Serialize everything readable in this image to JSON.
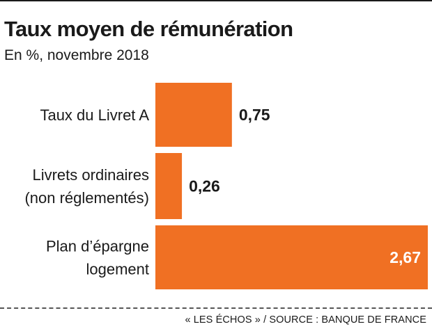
{
  "title": "Taux moyen de rémunération",
  "subtitle": "En %, novembre 2018",
  "source": "« LES ÉCHOS » / SOURCE : BANQUE DE FRANCE",
  "colors": {
    "bar": "#f07023",
    "text": "#1a1a1a",
    "value_inside": "#ffffff"
  },
  "chart_data": {
    "type": "bar",
    "orientation": "horizontal",
    "categories": [
      [
        "Taux du Livret A"
      ],
      [
        "Livrets ordinaires",
        "(non réglementés)"
      ],
      [
        "Plan d’épargne",
        "logement"
      ]
    ],
    "values": [
      0.75,
      0.26,
      2.67
    ],
    "value_labels": [
      "0,75",
      "0,26",
      "2,67"
    ],
    "title": "Taux moyen de rémunération",
    "subtitle": "En %, novembre 2018",
    "xlim": [
      0,
      2.67
    ],
    "grid": false,
    "legend": "none"
  }
}
